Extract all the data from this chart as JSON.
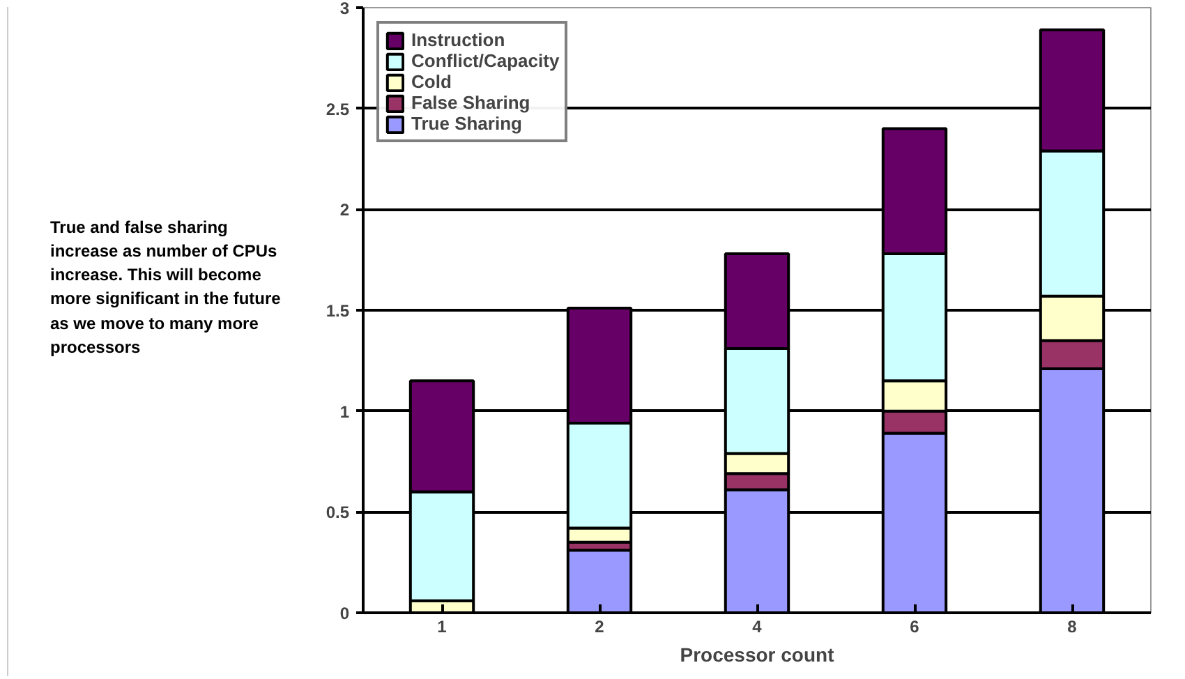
{
  "chart_data": {
    "type": "bar",
    "stacked": true,
    "categories": [
      "1",
      "2",
      "4",
      "6",
      "8"
    ],
    "xlabel": "Processor count",
    "series": [
      {
        "name": "True Sharing",
        "color": "#9999ff",
        "values": [
          0,
          0.31,
          0.61,
          0.89,
          1.21
        ]
      },
      {
        "name": "False Sharing",
        "color": "#993366",
        "values": [
          0,
          0.04,
          0.08,
          0.11,
          0.14
        ]
      },
      {
        "name": "Cold",
        "color": "#ffffcc",
        "values": [
          0.06,
          0.07,
          0.1,
          0.15,
          0.22
        ]
      },
      {
        "name": "Conflict/Capacity",
        "color": "#ccffff",
        "values": [
          0.54,
          0.52,
          0.52,
          0.63,
          0.72
        ]
      },
      {
        "name": "Instruction",
        "color": "#660066",
        "values": [
          0.55,
          0.57,
          0.47,
          0.62,
          0.6
        ]
      }
    ],
    "ylim": [
      0,
      3
    ],
    "yticks": [
      0,
      0.5,
      1,
      1.5,
      2,
      2.5,
      3
    ],
    "grid": "y",
    "legend": "top left",
    "annotations": [
      "True and false sharing increase as number of CPUs increase. This will become more significant in the future as we move to many more processors"
    ]
  }
}
